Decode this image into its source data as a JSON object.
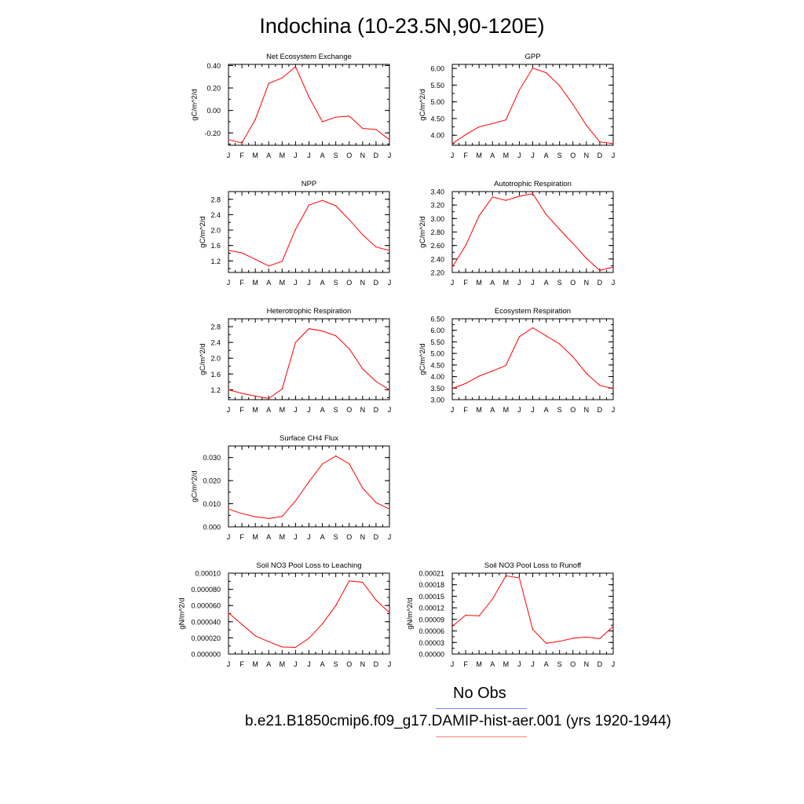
{
  "title": "Indochina (10-23.5N,90-120E)",
  "months": [
    "J",
    "F",
    "M",
    "A",
    "M",
    "J",
    "J",
    "A",
    "S",
    "O",
    "N",
    "D",
    "J"
  ],
  "colors": {
    "series": "#ff0000",
    "obs": "#7b7bff",
    "axis": "#000000"
  },
  "legend": {
    "obs_label": "No Obs",
    "case_label": "b.e21.B1850cmip6.f09_g17.DAMIP-hist-aer.001 (yrs 1920-1944)"
  },
  "chart_data": [
    {
      "type": "line",
      "title": "Net Ecosystem Exchange",
      "ylabel": "gC/m^2/d",
      "xlabel": "",
      "ylim": [
        -0.31,
        0.41
      ],
      "yticks": [
        -0.2,
        0.0,
        0.2,
        0.4
      ],
      "ytick_labels": [
        "-0.20",
        "0.00",
        "0.20",
        "0.40"
      ],
      "minor_step": 0.1,
      "categories": [
        "J",
        "F",
        "M",
        "A",
        "M",
        "J",
        "J",
        "A",
        "S",
        "O",
        "N",
        "D",
        "J"
      ],
      "values": [
        -0.26,
        -0.29,
        -0.08,
        0.24,
        0.29,
        0.39,
        0.12,
        -0.1,
        -0.06,
        -0.05,
        -0.16,
        -0.17,
        -0.26
      ]
    },
    {
      "type": "line",
      "title": "GPP",
      "ylabel": "gC/m^2/d",
      "xlabel": "",
      "ylim": [
        3.7,
        6.12
      ],
      "yticks": [
        4.0,
        4.5,
        5.0,
        5.5,
        6.0
      ],
      "ytick_labels": [
        "4.00",
        "4.50",
        "5.00",
        "5.50",
        "6.00"
      ],
      "minor_step": 0.25,
      "categories": [
        "J",
        "F",
        "M",
        "A",
        "M",
        "J",
        "J",
        "A",
        "S",
        "O",
        "N",
        "D",
        "J"
      ],
      "values": [
        3.75,
        4.02,
        4.25,
        4.35,
        4.46,
        5.35,
        6.01,
        5.87,
        5.48,
        4.92,
        4.3,
        3.8,
        3.75
      ]
    },
    {
      "type": "line",
      "title": "NPP",
      "ylabel": "gC/m^2/d",
      "xlabel": "",
      "ylim": [
        0.9,
        3.0
      ],
      "yticks": [
        1.2,
        1.6,
        2.0,
        2.4,
        2.8
      ],
      "ytick_labels": [
        "1.2",
        "1.6",
        "2.0",
        "2.4",
        "2.8"
      ],
      "minor_step": 0.2,
      "categories": [
        "J",
        "F",
        "M",
        "A",
        "M",
        "J",
        "J",
        "A",
        "S",
        "O",
        "N",
        "D",
        "J"
      ],
      "values": [
        1.47,
        1.41,
        1.24,
        1.07,
        1.19,
        2.02,
        2.65,
        2.77,
        2.63,
        2.27,
        1.88,
        1.56,
        1.47
      ]
    },
    {
      "type": "line",
      "title": "Autotrophic Respiration",
      "ylabel": "gC/m^2/d",
      "xlabel": "",
      "ylim": [
        2.2,
        3.4
      ],
      "yticks": [
        2.2,
        2.4,
        2.6,
        2.8,
        3.0,
        3.2,
        3.4
      ],
      "ytick_labels": [
        "2.20",
        "2.40",
        "2.60",
        "2.80",
        "3.00",
        "3.20",
        "3.40"
      ],
      "minor_step": 0.1,
      "categories": [
        "J",
        "F",
        "M",
        "A",
        "M",
        "J",
        "J",
        "A",
        "S",
        "O",
        "N",
        "D",
        "J"
      ],
      "values": [
        2.28,
        2.6,
        3.04,
        3.32,
        3.27,
        3.33,
        3.37,
        3.06,
        2.84,
        2.63,
        2.41,
        2.23,
        2.28
      ]
    },
    {
      "type": "line",
      "title": "Heterotrophic Respiration",
      "ylabel": "gC/m^2/d",
      "xlabel": "",
      "ylim": [
        0.95,
        3.0
      ],
      "yticks": [
        1.2,
        1.6,
        2.0,
        2.4,
        2.8
      ],
      "ytick_labels": [
        "1.2",
        "1.6",
        "2.0",
        "2.4",
        "2.8"
      ],
      "minor_step": 0.2,
      "categories": [
        "J",
        "F",
        "M",
        "A",
        "M",
        "J",
        "J",
        "A",
        "S",
        "O",
        "N",
        "D",
        "J"
      ],
      "values": [
        1.2,
        1.11,
        1.04,
        0.98,
        1.22,
        2.4,
        2.75,
        2.69,
        2.57,
        2.24,
        1.73,
        1.41,
        1.2
      ]
    },
    {
      "type": "line",
      "title": "Ecosystem Respiration",
      "ylabel": "gC/m^2/d",
      "xlabel": "",
      "ylim": [
        3.0,
        6.5
      ],
      "yticks": [
        3.0,
        3.5,
        4.0,
        4.5,
        5.0,
        5.5,
        6.0,
        6.5
      ],
      "ytick_labels": [
        "3.00",
        "3.50",
        "4.00",
        "4.50",
        "5.00",
        "5.50",
        "6.00",
        "6.50"
      ],
      "minor_step": 0.25,
      "categories": [
        "J",
        "F",
        "M",
        "A",
        "M",
        "J",
        "J",
        "A",
        "S",
        "O",
        "N",
        "D",
        "J"
      ],
      "values": [
        3.48,
        3.7,
        4.02,
        4.24,
        4.48,
        5.72,
        6.11,
        5.76,
        5.41,
        4.85,
        4.14,
        3.62,
        3.48
      ]
    },
    {
      "type": "line",
      "title": "Surface CH4 Flux",
      "ylabel": "gC/m^2/d",
      "xlabel": "",
      "ylim": [
        0.0,
        0.035
      ],
      "yticks": [
        0.0,
        0.01,
        0.02,
        0.03
      ],
      "ytick_labels": [
        "0.000",
        "0.010",
        "0.020",
        "0.030"
      ],
      "minor_step": 0.005,
      "categories": [
        "J",
        "F",
        "M",
        "A",
        "M",
        "J",
        "J",
        "A",
        "S",
        "O",
        "N",
        "D",
        "J"
      ],
      "values": [
        0.0077,
        0.0057,
        0.0044,
        0.0036,
        0.0045,
        0.0112,
        0.0195,
        0.0272,
        0.0307,
        0.0273,
        0.0168,
        0.0105,
        0.0077
      ]
    },
    {
      "type": "line",
      "title": "Soil NO3 Pool Loss to Leaching",
      "ylabel": "gN/m^2/d",
      "xlabel": "",
      "ylim": [
        0.0,
        0.0001
      ],
      "yticks": [
        0.0,
        2e-05,
        4e-05,
        6e-05,
        8e-05,
        0.0001
      ],
      "ytick_labels": [
        "0.000000",
        "0.000020",
        "0.000040",
        "0.000060",
        "0.000080",
        "0.00010"
      ],
      "minor_step": 1e-05,
      "categories": [
        "J",
        "F",
        "M",
        "A",
        "M",
        "J",
        "J",
        "A",
        "S",
        "O",
        "N",
        "D",
        "J"
      ],
      "values": [
        5.11e-05,
        3.67e-05,
        2.25e-05,
        1.52e-05,
        8.7e-06,
        8.3e-06,
        1.96e-05,
        3.73e-05,
        5.99e-05,
        9.05e-05,
        8.87e-05,
        6.67e-05,
        5.11e-05
      ]
    },
    {
      "type": "line",
      "title": "Soil NO3 Pool Loss to Runoff",
      "ylabel": "gN/m^2/d",
      "xlabel": "",
      "ylim": [
        0.0,
        0.00021
      ],
      "yticks": [
        0.0,
        3e-05,
        6e-05,
        9e-05,
        0.00012,
        0.00015,
        0.00018,
        0.00021
      ],
      "ytick_labels": [
        "0.00000",
        "0.00003",
        "0.00006",
        "0.00009",
        "0.00012",
        "0.00015",
        "0.00018",
        "0.00021"
      ],
      "minor_step": 1.5e-05,
      "categories": [
        "J",
        "F",
        "M",
        "A",
        "M",
        "J",
        "J",
        "A",
        "S",
        "O",
        "N",
        "D",
        "J"
      ],
      "values": [
        7.2e-05,
        0.000101,
        9.9e-05,
        0.000143,
        0.000203,
        0.000198,
        6.4e-05,
        2.8e-05,
        3.3e-05,
        4.1e-05,
        4.4e-05,
        4e-05,
        7.2e-05
      ]
    }
  ]
}
